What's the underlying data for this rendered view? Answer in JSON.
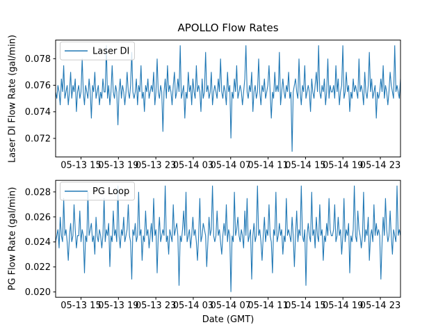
{
  "figure": {
    "title": "APOLLO Flow Rates",
    "xlabel": "Date (GMT)"
  },
  "colors": {
    "line": "#1f77b4",
    "axes_edge": "#000000",
    "legend_edge": "#cccccc",
    "text": "#000000",
    "background": "#ffffff"
  },
  "chart_data": [
    {
      "type": "line",
      "series_name": "Laser DI",
      "legend": {
        "label": "Laser DI",
        "position": "upper left"
      },
      "ylabel": "Laser DI Flow Rate (gal/min)",
      "ylim": [
        0.0706,
        0.0794
      ],
      "y_ticks": [
        0.072,
        0.074,
        0.076,
        0.078
      ],
      "y_tick_labels": [
        "0.072",
        "0.074",
        "0.076",
        "0.078"
      ],
      "x_tick_labels": [
        "05-13 15",
        "05-13 19",
        "05-13 23",
        "05-14 03",
        "05-14 07",
        "05-14 11",
        "05-14 15",
        "05-14 19",
        "05-14 23"
      ],
      "x_tick_positions": [
        0.0736,
        0.1821,
        0.2906,
        0.3991,
        0.5076,
        0.6161,
        0.7246,
        0.8331,
        0.9416
      ],
      "grid": false,
      "x_mode": "evenly spaced samples spanning the full x-axis",
      "value_encoding": {
        "base": 0.071,
        "step": 0.0005,
        "formula": "value = base + step * index"
      },
      "value_indices": [
        9,
        8,
        10,
        9,
        7,
        11,
        9,
        13,
        8,
        9,
        10,
        7,
        9,
        12,
        8,
        10,
        9,
        11,
        6,
        9,
        10,
        8,
        9,
        14,
        9,
        7,
        10,
        9,
        8,
        11,
        9,
        5,
        10,
        9,
        12,
        8,
        9,
        10,
        7,
        9,
        8,
        11,
        9,
        9,
        16,
        8,
        10,
        7,
        9,
        13,
        9,
        8,
        10,
        9,
        4,
        9,
        11,
        8,
        10,
        9,
        7,
        9,
        12,
        9,
        8,
        10,
        15,
        9,
        8,
        9,
        11,
        7,
        10,
        9,
        13,
        8,
        9,
        6,
        10,
        9,
        11,
        8,
        9,
        10,
        9,
        12,
        7,
        9,
        14,
        9,
        8,
        10,
        9,
        3,
        9,
        11,
        8,
        13,
        9,
        10,
        9,
        7,
        10,
        12,
        8,
        9,
        11,
        9,
        16,
        8,
        9,
        10,
        5,
        9,
        8,
        12,
        9,
        10,
        7,
        11,
        9,
        8,
        13,
        9,
        10,
        9,
        6,
        11,
        8,
        9,
        15,
        9,
        10,
        8,
        9,
        12,
        7,
        9,
        10,
        9,
        8,
        11,
        9,
        14,
        9,
        8,
        10,
        9,
        7,
        12,
        9,
        10,
        2,
        9,
        8,
        11,
        9,
        13,
        8,
        9,
        10,
        9,
        7,
        9,
        11,
        16,
        9,
        8,
        10,
        9,
        12,
        6,
        9,
        10,
        8,
        9,
        14,
        9,
        7,
        10,
        9,
        11,
        8,
        9,
        10,
        13,
        9,
        5,
        9,
        8,
        12,
        9,
        10,
        9,
        15,
        7,
        9,
        11,
        9,
        8,
        10,
        9,
        12,
        8,
        9,
        0,
        9,
        10,
        11,
        9,
        8,
        14,
        9,
        7,
        10,
        9,
        13,
        8,
        9,
        10,
        9,
        6,
        11,
        9,
        8,
        10,
        12,
        9,
        16,
        9,
        8,
        10,
        9,
        11,
        7,
        9,
        14,
        8,
        10,
        9,
        9,
        10,
        8,
        13,
        9,
        11,
        7,
        9,
        10,
        16,
        8,
        9,
        12,
        9,
        10,
        6,
        9,
        8,
        11,
        9,
        10,
        9,
        8,
        14,
        9,
        10,
        9,
        7,
        12,
        9,
        8,
        10,
        15,
        9,
        11,
        8,
        9,
        10,
        5,
        9,
        8,
        9,
        11,
        9,
        13,
        8,
        10,
        9,
        7,
        9,
        12,
        10,
        9,
        8,
        16,
        9,
        10,
        9,
        8,
        11
      ]
    },
    {
      "type": "line",
      "series_name": "PG Loop",
      "legend": {
        "label": "PG Loop",
        "position": "upper left"
      },
      "ylabel": "PG Flow Rate (gal/min)",
      "ylim": [
        0.019575,
        0.028925
      ],
      "y_ticks": [
        0.02,
        0.022,
        0.024,
        0.026,
        0.028
      ],
      "y_tick_labels": [
        "0.020",
        "0.022",
        "0.024",
        "0.026",
        "0.028"
      ],
      "x_tick_labels": [
        "05-13 15",
        "05-13 19",
        "05-13 23",
        "05-14 03",
        "05-14 07",
        "05-14 11",
        "05-14 15",
        "05-14 19",
        "05-14 23"
      ],
      "x_tick_positions": [
        0.0736,
        0.1821,
        0.2906,
        0.3991,
        0.5076,
        0.6161,
        0.7246,
        0.8331,
        0.9416
      ],
      "grid": false,
      "x_mode": "evenly spaced samples spanning the full x-axis",
      "value_encoding": {
        "base": 0.02,
        "step": 0.0005,
        "formula": "value = base + step * index"
      },
      "value_indices": [
        8,
        9,
        10,
        7,
        12,
        9,
        8,
        15,
        9,
        10,
        8,
        5,
        9,
        11,
        8,
        9,
        14,
        10,
        7,
        9,
        9,
        13,
        8,
        10,
        9,
        3,
        9,
        8,
        16,
        9,
        10,
        11,
        8,
        9,
        6,
        12,
        9,
        8,
        10,
        9,
        7,
        9,
        15,
        8,
        10,
        9,
        11,
        4,
        9,
        8,
        13,
        9,
        10,
        8,
        17,
        9,
        7,
        10,
        9,
        12,
        8,
        9,
        10,
        14,
        9,
        8,
        2,
        10,
        9,
        11,
        8,
        9,
        16,
        9,
        10,
        5,
        9,
        8,
        13,
        9,
        10,
        7,
        9,
        11,
        8,
        15,
        9,
        10,
        3,
        9,
        12,
        8,
        9,
        10,
        9,
        17,
        8,
        9,
        6,
        10,
        9,
        8,
        14,
        9,
        10,
        11,
        9,
        1,
        9,
        8,
        10,
        13,
        9,
        16,
        8,
        9,
        10,
        7,
        9,
        12,
        9,
        10,
        8,
        5,
        9,
        15,
        8,
        9,
        11,
        10,
        9,
        4,
        8,
        12,
        9,
        10,
        17,
        9,
        8,
        9,
        13,
        9,
        10,
        8,
        6,
        9,
        11,
        9,
        14,
        8,
        10,
        9,
        0,
        9,
        8,
        16,
        9,
        10,
        12,
        9,
        8,
        10,
        9,
        7,
        13,
        9,
        15,
        8,
        9,
        10,
        2,
        9,
        11,
        8,
        9,
        17,
        9,
        10,
        8,
        5,
        9,
        12,
        8,
        10,
        9,
        14,
        9,
        8,
        3,
        10,
        9,
        16,
        8,
        9,
        11,
        9,
        10,
        6,
        9,
        8,
        15,
        9,
        10,
        9,
        8,
        12,
        9,
        4,
        9,
        13,
        8,
        10,
        9,
        17,
        9,
        8,
        10,
        1,
        9,
        11,
        9,
        8,
        16,
        9,
        10,
        7,
        12,
        9,
        8,
        14,
        9,
        10,
        5,
        9,
        8,
        11,
        9,
        15,
        10,
        9,
        9,
        10,
        14,
        8,
        9,
        12,
        9,
        10,
        6,
        9,
        15,
        8,
        10,
        9,
        11,
        3,
        9,
        8,
        10,
        17,
        9,
        8,
        13,
        10,
        9,
        7,
        9,
        16,
        8,
        10,
        9,
        12,
        5,
        9,
        10,
        8,
        14,
        9,
        11,
        9,
        10,
        9,
        2,
        8,
        12,
        9,
        15,
        10,
        8,
        9,
        13,
        9,
        6,
        10,
        9,
        8,
        17,
        9,
        10,
        9
      ]
    }
  ]
}
